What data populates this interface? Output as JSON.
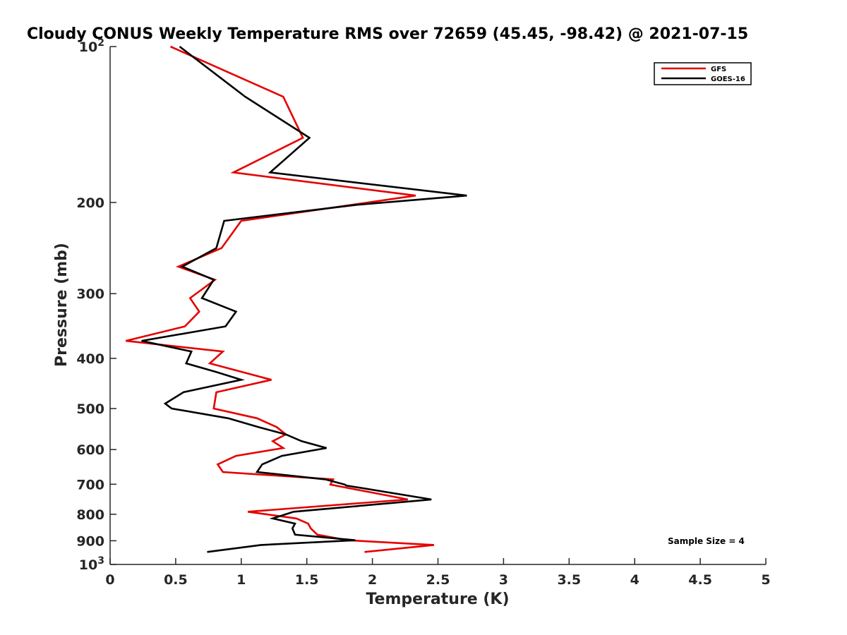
{
  "chart_data": {
    "type": "line",
    "title": "Cloudy CONUS Weekly Temperature RMS over 72659 (45.45, -98.42) @ 2021-07-15",
    "xlabel": "Temperature (K)",
    "ylabel": "Pressure (mb)",
    "xlim": [
      0,
      5
    ],
    "ylim": [
      100,
      1000
    ],
    "y_scale": "log",
    "y_reversed": true,
    "grid": false,
    "legend_position": "top-right",
    "x_ticks": [
      0,
      0.5,
      1,
      1.5,
      2,
      2.5,
      3,
      3.5,
      4,
      4.5,
      5
    ],
    "x_tick_labels": [
      "0",
      "0.5",
      "1",
      "1.5",
      "2",
      "2.5",
      "3",
      "3.5",
      "4",
      "4.5",
      "5"
    ],
    "y_ticks": [
      {
        "value": 100,
        "label": "10",
        "sup": "2"
      },
      {
        "value": 200,
        "label": "200",
        "sup": ""
      },
      {
        "value": 300,
        "label": "300",
        "sup": ""
      },
      {
        "value": 400,
        "label": "400",
        "sup": ""
      },
      {
        "value": 500,
        "label": "500",
        "sup": ""
      },
      {
        "value": 600,
        "label": "600",
        "sup": ""
      },
      {
        "value": 700,
        "label": "700",
        "sup": ""
      },
      {
        "value": 800,
        "label": "800",
        "sup": ""
      },
      {
        "value": 900,
        "label": "900",
        "sup": ""
      },
      {
        "value": 1000,
        "label": "10",
        "sup": "3"
      }
    ],
    "annotation": "Sample Size = 4",
    "series": [
      {
        "name": "GFS",
        "color": "#e60000",
        "points": [
          [
            0.46,
            100
          ],
          [
            1.32,
            125
          ],
          [
            1.47,
            150
          ],
          [
            0.94,
            175
          ],
          [
            2.33,
            194
          ],
          [
            1.0,
            217
          ],
          [
            0.85,
            245
          ],
          [
            0.52,
            266
          ],
          [
            0.8,
            282
          ],
          [
            0.61,
            306
          ],
          [
            0.68,
            325
          ],
          [
            0.57,
            347
          ],
          [
            0.12,
            370
          ],
          [
            0.86,
            388
          ],
          [
            0.76,
            409
          ],
          [
            1.23,
            440
          ],
          [
            0.81,
            465
          ],
          [
            0.79,
            500
          ],
          [
            1.12,
            522
          ],
          [
            1.27,
            543
          ],
          [
            1.34,
            561
          ],
          [
            1.24,
            578
          ],
          [
            1.32,
            596
          ],
          [
            0.96,
            617
          ],
          [
            0.82,
            641
          ],
          [
            0.86,
            663
          ],
          [
            1.7,
            685
          ],
          [
            1.68,
            701
          ],
          [
            2.27,
            749
          ],
          [
            1.05,
            791
          ],
          [
            1.42,
            815
          ],
          [
            1.51,
            834
          ],
          [
            1.53,
            852
          ],
          [
            1.58,
            876
          ],
          [
            1.81,
            898
          ],
          [
            2.47,
            917
          ],
          [
            1.94,
            946
          ]
        ]
      },
      {
        "name": "GOES-16",
        "color": "#000000",
        "points": [
          [
            0.53,
            100
          ],
          [
            1.03,
            125
          ],
          [
            1.52,
            150
          ],
          [
            1.22,
            175
          ],
          [
            2.72,
            194
          ],
          [
            1.89,
            202
          ],
          [
            0.87,
            217
          ],
          [
            0.81,
            245
          ],
          [
            0.55,
            266
          ],
          [
            0.79,
            282
          ],
          [
            0.7,
            306
          ],
          [
            0.96,
            325
          ],
          [
            0.88,
            347
          ],
          [
            0.24,
            370
          ],
          [
            0.62,
            388
          ],
          [
            0.58,
            409
          ],
          [
            0.81,
            425
          ],
          [
            1.0,
            440
          ],
          [
            0.56,
            465
          ],
          [
            0.42,
            489
          ],
          [
            0.47,
            500
          ],
          [
            0.9,
            522
          ],
          [
            1.13,
            543
          ],
          [
            1.34,
            561
          ],
          [
            1.46,
            578
          ],
          [
            1.65,
            596
          ],
          [
            1.31,
            617
          ],
          [
            1.16,
            641
          ],
          [
            1.12,
            663
          ],
          [
            1.64,
            685
          ],
          [
            1.79,
            701
          ],
          [
            1.8,
            704
          ],
          [
            2.45,
            749
          ],
          [
            1.4,
            791
          ],
          [
            1.24,
            815
          ],
          [
            1.41,
            834
          ],
          [
            1.39,
            852
          ],
          [
            1.41,
            876
          ],
          [
            1.87,
            898
          ],
          [
            1.15,
            917
          ],
          [
            0.74,
            946
          ]
        ]
      }
    ]
  }
}
